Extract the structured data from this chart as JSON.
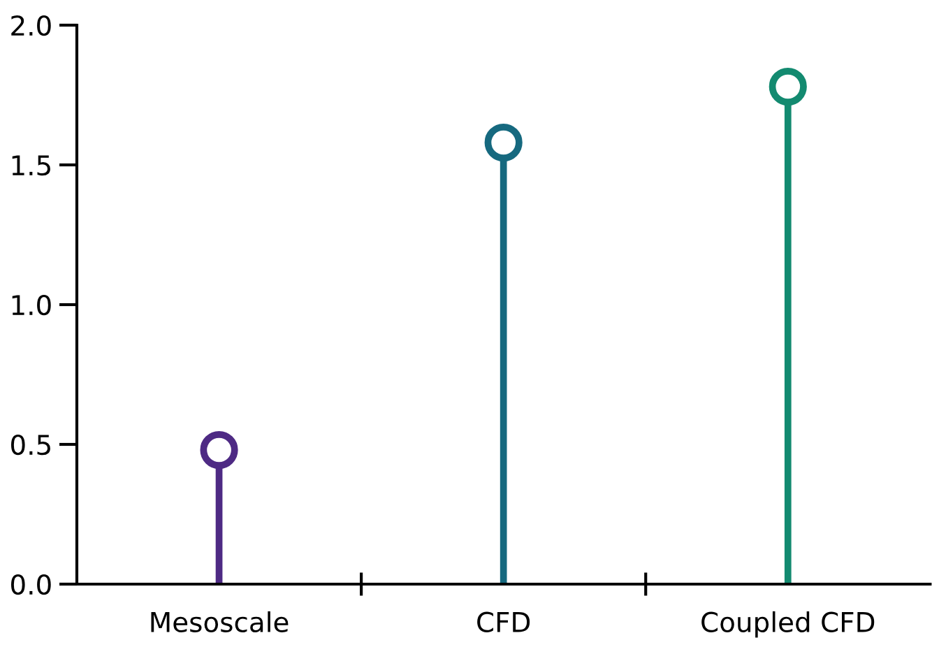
{
  "chart_data": {
    "type": "lollipop",
    "categories": [
      "Mesoscale",
      "CFD",
      "Coupled CFD"
    ],
    "values": [
      0.48,
      1.58,
      1.78
    ],
    "colors": [
      "#4e2a84",
      "#16697f",
      "#138a70"
    ],
    "ylim": [
      0,
      2.0
    ],
    "yticks": [
      {
        "value": 0,
        "label": "0.0"
      },
      {
        "value": 0.5,
        "label": "0.5"
      },
      {
        "value": 1.0,
        "label": "1.0"
      },
      {
        "value": 1.5,
        "label": "1.5"
      },
      {
        "value": 2.0,
        "label": "2.0"
      }
    ],
    "grid": false
  }
}
